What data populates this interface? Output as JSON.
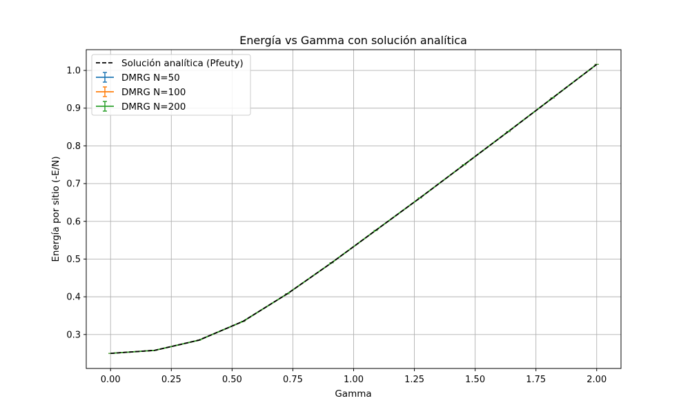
{
  "chart_data": {
    "type": "line",
    "title": "Energía vs Gamma con solución analítica",
    "xlabel": "Gamma",
    "ylabel": "Energía por sitio (-E/N)",
    "xlim": [
      -0.1,
      2.1
    ],
    "ylim": [
      0.21,
      1.055
    ],
    "xticks": [
      "0.00",
      "0.25",
      "0.50",
      "0.75",
      "1.00",
      "1.25",
      "1.50",
      "1.75",
      "2.00"
    ],
    "yticks": [
      "0.3",
      "0.4",
      "0.5",
      "0.6",
      "0.7",
      "0.8",
      "0.9",
      "1.0"
    ],
    "grid": true,
    "legend_position": "top-left",
    "x": [
      0.0,
      0.1818,
      0.3636,
      0.5455,
      0.7273,
      0.9091,
      1.0909,
      1.2727,
      1.4545,
      1.6364,
      1.8182,
      2.0
    ],
    "analytic": {
      "name": "Solución analítica (Pfeuty)",
      "color": "#000000",
      "values": [
        0.25,
        0.258,
        0.285,
        0.335,
        0.408,
        0.49,
        0.576,
        0.662,
        0.75,
        0.838,
        0.927,
        1.016
      ]
    },
    "series": [
      {
        "name": "DMRG N=50",
        "color": "#1f77b4",
        "values": [
          0.25,
          0.258,
          0.285,
          0.335,
          0.408,
          0.49,
          0.576,
          0.662,
          0.75,
          0.838,
          0.927,
          1.016
        ]
      },
      {
        "name": "DMRG N=100",
        "color": "#ff7f0e",
        "values": [
          0.25,
          0.258,
          0.285,
          0.335,
          0.408,
          0.49,
          0.576,
          0.662,
          0.75,
          0.838,
          0.927,
          1.016
        ]
      },
      {
        "name": "DMRG N=200",
        "color": "#2ca02c",
        "values": [
          0.25,
          0.258,
          0.285,
          0.335,
          0.408,
          0.49,
          0.576,
          0.662,
          0.75,
          0.838,
          0.927,
          1.016
        ]
      }
    ]
  }
}
